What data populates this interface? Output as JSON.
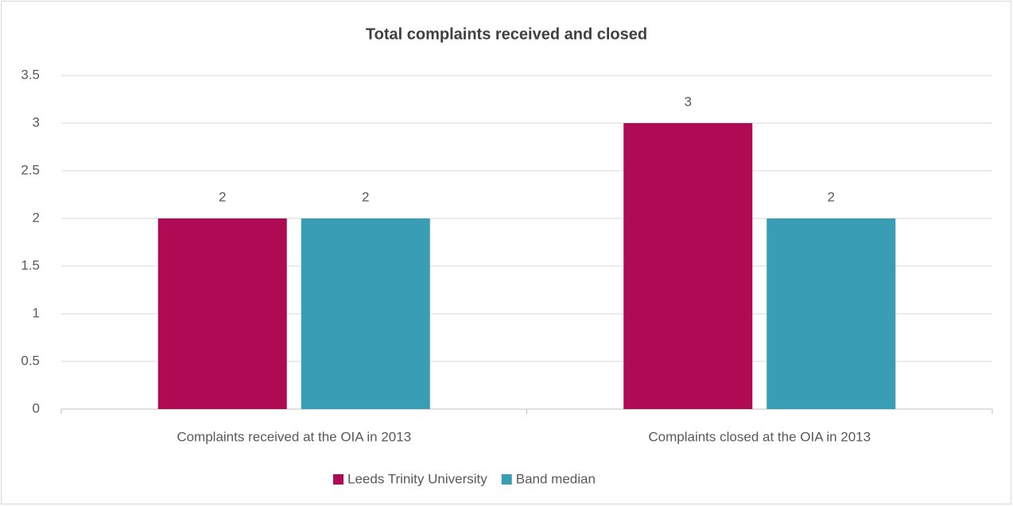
{
  "chart_data": {
    "type": "bar",
    "title": "Total complaints received and closed",
    "categories": [
      "Complaints received at the OIA in 2013",
      "Complaints closed at the OIA in 2013"
    ],
    "series": [
      {
        "name": "Leeds Trinity University",
        "color": "#b00a55",
        "values": [
          2,
          3
        ]
      },
      {
        "name": "Band median",
        "color": "#399db5",
        "values": [
          2,
          2
        ]
      }
    ],
    "ylim": [
      0,
      3.5
    ],
    "yticks": [
      0,
      0.5,
      1,
      1.5,
      2,
      2.5,
      3,
      3.5
    ],
    "grid": true,
    "legend": "bottom"
  }
}
